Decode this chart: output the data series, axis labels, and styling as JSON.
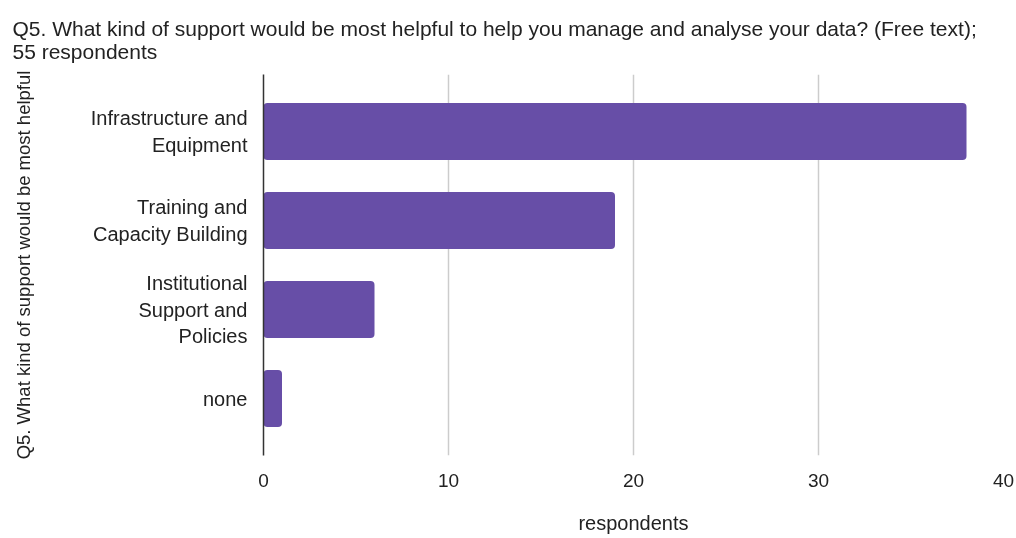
{
  "chart_data": {
    "type": "bar",
    "orientation": "horizontal",
    "title": "Q5. What kind of support would be most helpful to help you manage and analyse your data? (Free text); 55 respondents",
    "xlabel": "respondents",
    "ylabel": "Q5. What kind of support would be most helpful",
    "categories": [
      "Infrastructure and Equipment",
      "Training and Capacity Building",
      "Institutional Support and Policies",
      "none"
    ],
    "values": [
      38,
      19,
      6,
      1
    ],
    "color": "#674ea7",
    "xlim": [
      0,
      40
    ],
    "xticks": [
      0,
      10,
      20,
      30,
      40
    ],
    "grid": "x"
  }
}
